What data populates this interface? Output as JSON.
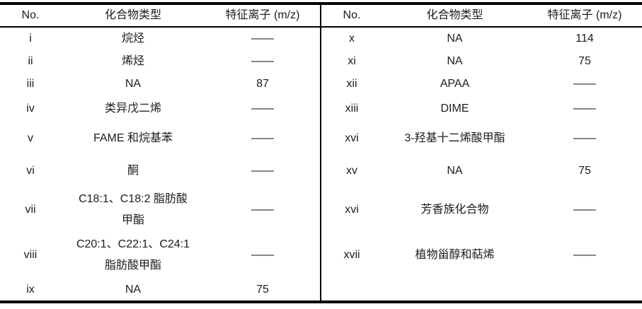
{
  "table": {
    "colors": {
      "border": "#000000",
      "text": "#1c1c1c",
      "background": "#ffffff"
    },
    "left": {
      "headers": {
        "no": "No.",
        "type": "化合物类型",
        "mz": "特征离子 (m/z)"
      },
      "rows": [
        {
          "no": "i",
          "type": "烷烃",
          "mz": "——"
        },
        {
          "no": "ii",
          "type": "烯烃",
          "mz": "——"
        },
        {
          "no": "iii",
          "type": "NA",
          "mz": "87"
        },
        {
          "no": "iv",
          "type": "类异戊二烯",
          "mz": "——"
        },
        {
          "no": "v",
          "type": "FAME 和烷基苯",
          "mz": "——"
        },
        {
          "no": "vi",
          "type": "酮",
          "mz": "——"
        },
        {
          "no": "vii",
          "type": "C18:1、C18:2 脂肪酸\n甲酯",
          "mz": "——"
        },
        {
          "no": "viii",
          "type": "C20:1、C22:1、C24:1\n脂肪酸甲酯",
          "mz": "——"
        },
        {
          "no": "ix",
          "type": "NA",
          "mz": "75"
        }
      ]
    },
    "right": {
      "headers": {
        "no": "No.",
        "type": "化合物类型",
        "mz": "特征离子 (m/z)"
      },
      "rows": [
        {
          "no": "x",
          "type": "NA",
          "mz": "114"
        },
        {
          "no": "xi",
          "type": "NA",
          "mz": "75"
        },
        {
          "no": "xii",
          "type": "APAA",
          "mz": "——"
        },
        {
          "no": "xiii",
          "type": "DIME",
          "mz": "——"
        },
        {
          "no": "xvi",
          "type": "3-羟基十二烯酸甲酯",
          "mz": "——"
        },
        {
          "no": "xv",
          "type": "NA",
          "mz": "75"
        },
        {
          "no": "xvi",
          "type": "芳香族化合物",
          "mz": "——"
        },
        {
          "no": "xvii",
          "type": "植物甾醇和萜烯",
          "mz": "——"
        },
        {
          "no": "",
          "type": "",
          "mz": ""
        }
      ]
    }
  }
}
